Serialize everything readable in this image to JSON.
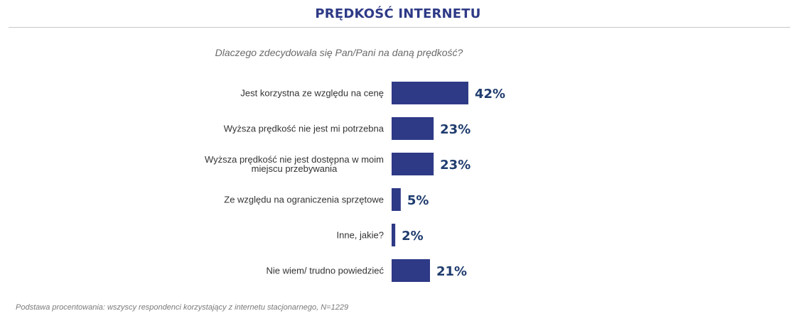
{
  "header": {
    "title": "PRĘDKOŚĆ INTERNETU",
    "question": "Dlaczego zdecydowała się Pan/Pani na daną prędkość?"
  },
  "footer": {
    "note": "Podstawa procentowania: wszyscy respondenci korzystający z internetu stacjonarnego, N=1229"
  },
  "colors": {
    "bar": "#2e3a86",
    "value_label": "#1f3c6e",
    "category_label": "#333333",
    "title": "#2e3a86"
  },
  "chart_data": {
    "type": "bar",
    "orientation": "horizontal",
    "title": "PRĘDKOŚĆ INTERNETU",
    "subtitle": "Dlaczego zdecydowała się Pan/Pani na daną prędkość?",
    "xlabel": "",
    "ylabel": "",
    "xlim": [
      0,
      42
    ],
    "grid": false,
    "legend": "none",
    "categories": [
      [
        "Jest korzystna ze względu na cenę"
      ],
      [
        "Wyższa prędkość nie jest mi potrzebna"
      ],
      [
        "Wyższa prędkość nie jest dostępna w moim",
        "miejscu przebywania"
      ],
      [
        "Ze względu na ograniczenia sprzętowe"
      ],
      [
        "Inne, jakie?"
      ],
      [
        "Nie wiem/ trudno powiedzieć"
      ]
    ],
    "values": [
      42,
      23,
      23,
      5,
      2,
      21
    ],
    "value_labels": [
      "42%",
      "23%",
      "23%",
      "5%",
      "2%",
      "21%"
    ]
  }
}
